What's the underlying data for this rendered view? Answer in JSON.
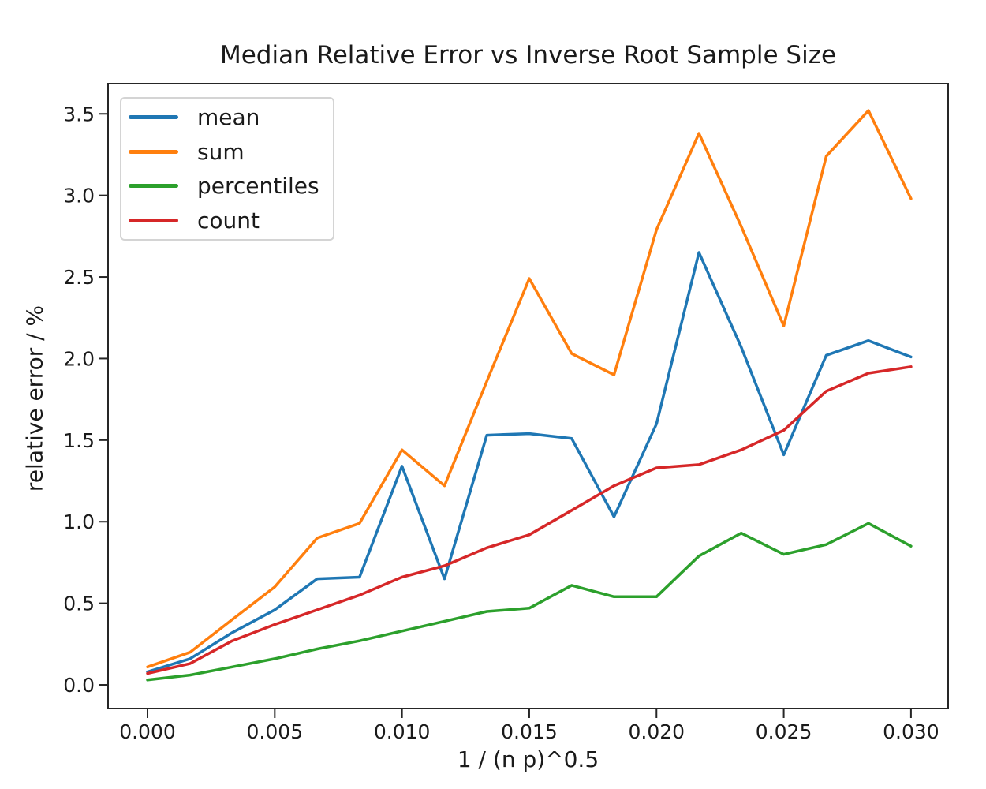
{
  "figure": {
    "background": "#ffffff"
  },
  "chart_data": {
    "type": "line",
    "title": "Median Relative Error vs Inverse Root Sample Size",
    "xlabel": "1 / (n p)^0.5",
    "ylabel": "relative error / %",
    "grid": false,
    "legend_position": "upper left",
    "axis_color": "#262626",
    "text_color": "#1a1a1a",
    "xlim": [
      -0.00155,
      0.03146
    ],
    "ylim": [
      -0.145,
      3.685
    ],
    "x_ticks": [
      0.0,
      0.005,
      0.01,
      0.015,
      0.02,
      0.025,
      0.03
    ],
    "x_tick_labels": [
      "0.000",
      "0.005",
      "0.010",
      "0.015",
      "0.020",
      "0.025",
      "0.030"
    ],
    "y_ticks": [
      0.0,
      0.5,
      1.0,
      1.5,
      2.0,
      2.5,
      3.0,
      3.5
    ],
    "y_tick_labels": [
      "0.0",
      "0.5",
      "1.0",
      "1.5",
      "2.0",
      "2.5",
      "3.0",
      "3.5"
    ],
    "x": [
      0.0,
      0.00167,
      0.00333,
      0.005,
      0.00667,
      0.00833,
      0.01,
      0.01167,
      0.01333,
      0.015,
      0.01667,
      0.01833,
      0.02,
      0.02167,
      0.02333,
      0.025,
      0.02667,
      0.02833,
      0.03
    ],
    "series": [
      {
        "name": "mean",
        "color": "#1f77b4",
        "values": [
          0.08,
          0.16,
          0.32,
          0.46,
          0.65,
          0.66,
          1.34,
          0.65,
          1.53,
          1.54,
          1.51,
          1.03,
          1.6,
          2.65,
          2.07,
          1.41,
          2.02,
          2.11,
          2.01
        ]
      },
      {
        "name": "sum",
        "color": "#ff7f0e",
        "values": [
          0.11,
          0.2,
          0.4,
          0.6,
          0.9,
          0.99,
          1.44,
          1.22,
          1.86,
          2.49,
          2.03,
          1.9,
          2.79,
          3.38,
          2.81,
          2.2,
          3.24,
          3.52,
          2.98
        ]
      },
      {
        "name": "percentiles",
        "color": "#2ca02c",
        "values": [
          0.03,
          0.06,
          0.11,
          0.16,
          0.22,
          0.27,
          0.33,
          0.39,
          0.45,
          0.47,
          0.61,
          0.54,
          0.54,
          0.79,
          0.93,
          0.8,
          0.86,
          0.99,
          0.85
        ]
      },
      {
        "name": "count",
        "color": "#d62728",
        "values": [
          0.07,
          0.13,
          0.27,
          0.37,
          0.46,
          0.55,
          0.66,
          0.73,
          0.84,
          0.92,
          1.07,
          1.22,
          1.33,
          1.35,
          1.44,
          1.56,
          1.8,
          1.91,
          1.95
        ]
      }
    ]
  }
}
